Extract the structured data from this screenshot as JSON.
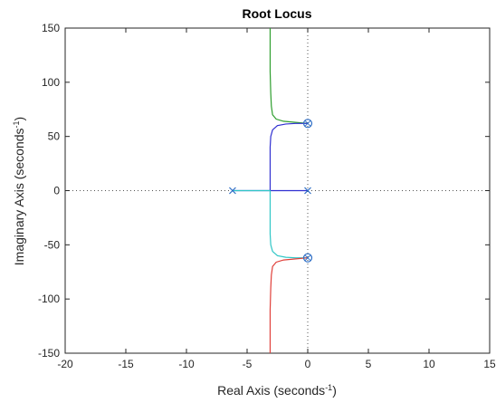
{
  "chart_data": {
    "type": "line",
    "title": "Root Locus",
    "xlabel": {
      "main": "Real Axis (seconds",
      "sup": "-1",
      "close": ")"
    },
    "ylabel": {
      "main": "Imaginary Axis (seconds",
      "sup": "-1",
      "close": ")"
    },
    "xlim": [
      -20,
      15
    ],
    "ylim": [
      -150,
      150
    ],
    "xticks": [
      -20,
      -15,
      -10,
      -5,
      0,
      5,
      10,
      15
    ],
    "yticks": [
      -150,
      -100,
      -50,
      0,
      50,
      100,
      150
    ],
    "xtick_labels": [
      "-20",
      "-15",
      "-10",
      "-5",
      "0",
      "5",
      "10",
      "15"
    ],
    "ytick_labels": [
      "-150",
      "-100",
      "-50",
      "0",
      "50",
      "100",
      "150"
    ],
    "grid": false,
    "dotted_axes": true,
    "series": [
      {
        "color": "#2e9e2e",
        "points": [
          [
            -3.1,
            150
          ],
          [
            -3.1,
            110
          ],
          [
            -3.05,
            90
          ],
          [
            -3.0,
            78
          ],
          [
            -2.9,
            70
          ],
          [
            -2.6,
            66
          ],
          [
            -2.0,
            64
          ],
          [
            -1.0,
            63
          ],
          [
            0,
            62
          ]
        ]
      },
      {
        "color": "#2f2fd1",
        "points": [
          [
            -6.2,
            0
          ],
          [
            -3.1,
            0
          ],
          [
            0,
            0
          ]
        ]
      },
      {
        "color": "#2f2fd1",
        "points": [
          [
            -3.1,
            0
          ],
          [
            -3.1,
            40
          ],
          [
            -3.05,
            50
          ],
          [
            -2.9,
            56
          ],
          [
            -2.5,
            60
          ],
          [
            -1.8,
            61.5
          ],
          [
            -1.0,
            62
          ],
          [
            0,
            62
          ]
        ]
      },
      {
        "color": "#2fc6c6",
        "points": [
          [
            -6.2,
            0
          ],
          [
            -3.1,
            0
          ],
          [
            -3.1,
            -40
          ],
          [
            -3.05,
            -50
          ],
          [
            -2.9,
            -56
          ],
          [
            -2.5,
            -60
          ],
          [
            -1.8,
            -61.5
          ],
          [
            -1.0,
            -62
          ],
          [
            0,
            -62
          ]
        ]
      },
      {
        "color": "#e0403a",
        "points": [
          [
            -3.1,
            -150
          ],
          [
            -3.1,
            -110
          ],
          [
            -3.05,
            -90
          ],
          [
            -3.0,
            -78
          ],
          [
            -2.9,
            -70
          ],
          [
            -2.6,
            -66
          ],
          [
            -2.0,
            -64
          ],
          [
            -1.0,
            -63
          ],
          [
            0,
            -62
          ]
        ]
      }
    ],
    "poles": [
      [
        -6.2,
        0
      ],
      [
        0,
        0
      ]
    ],
    "zeros": [
      [
        0,
        62
      ],
      [
        0,
        -62
      ]
    ],
    "marker_color": "#2f6fc6"
  }
}
